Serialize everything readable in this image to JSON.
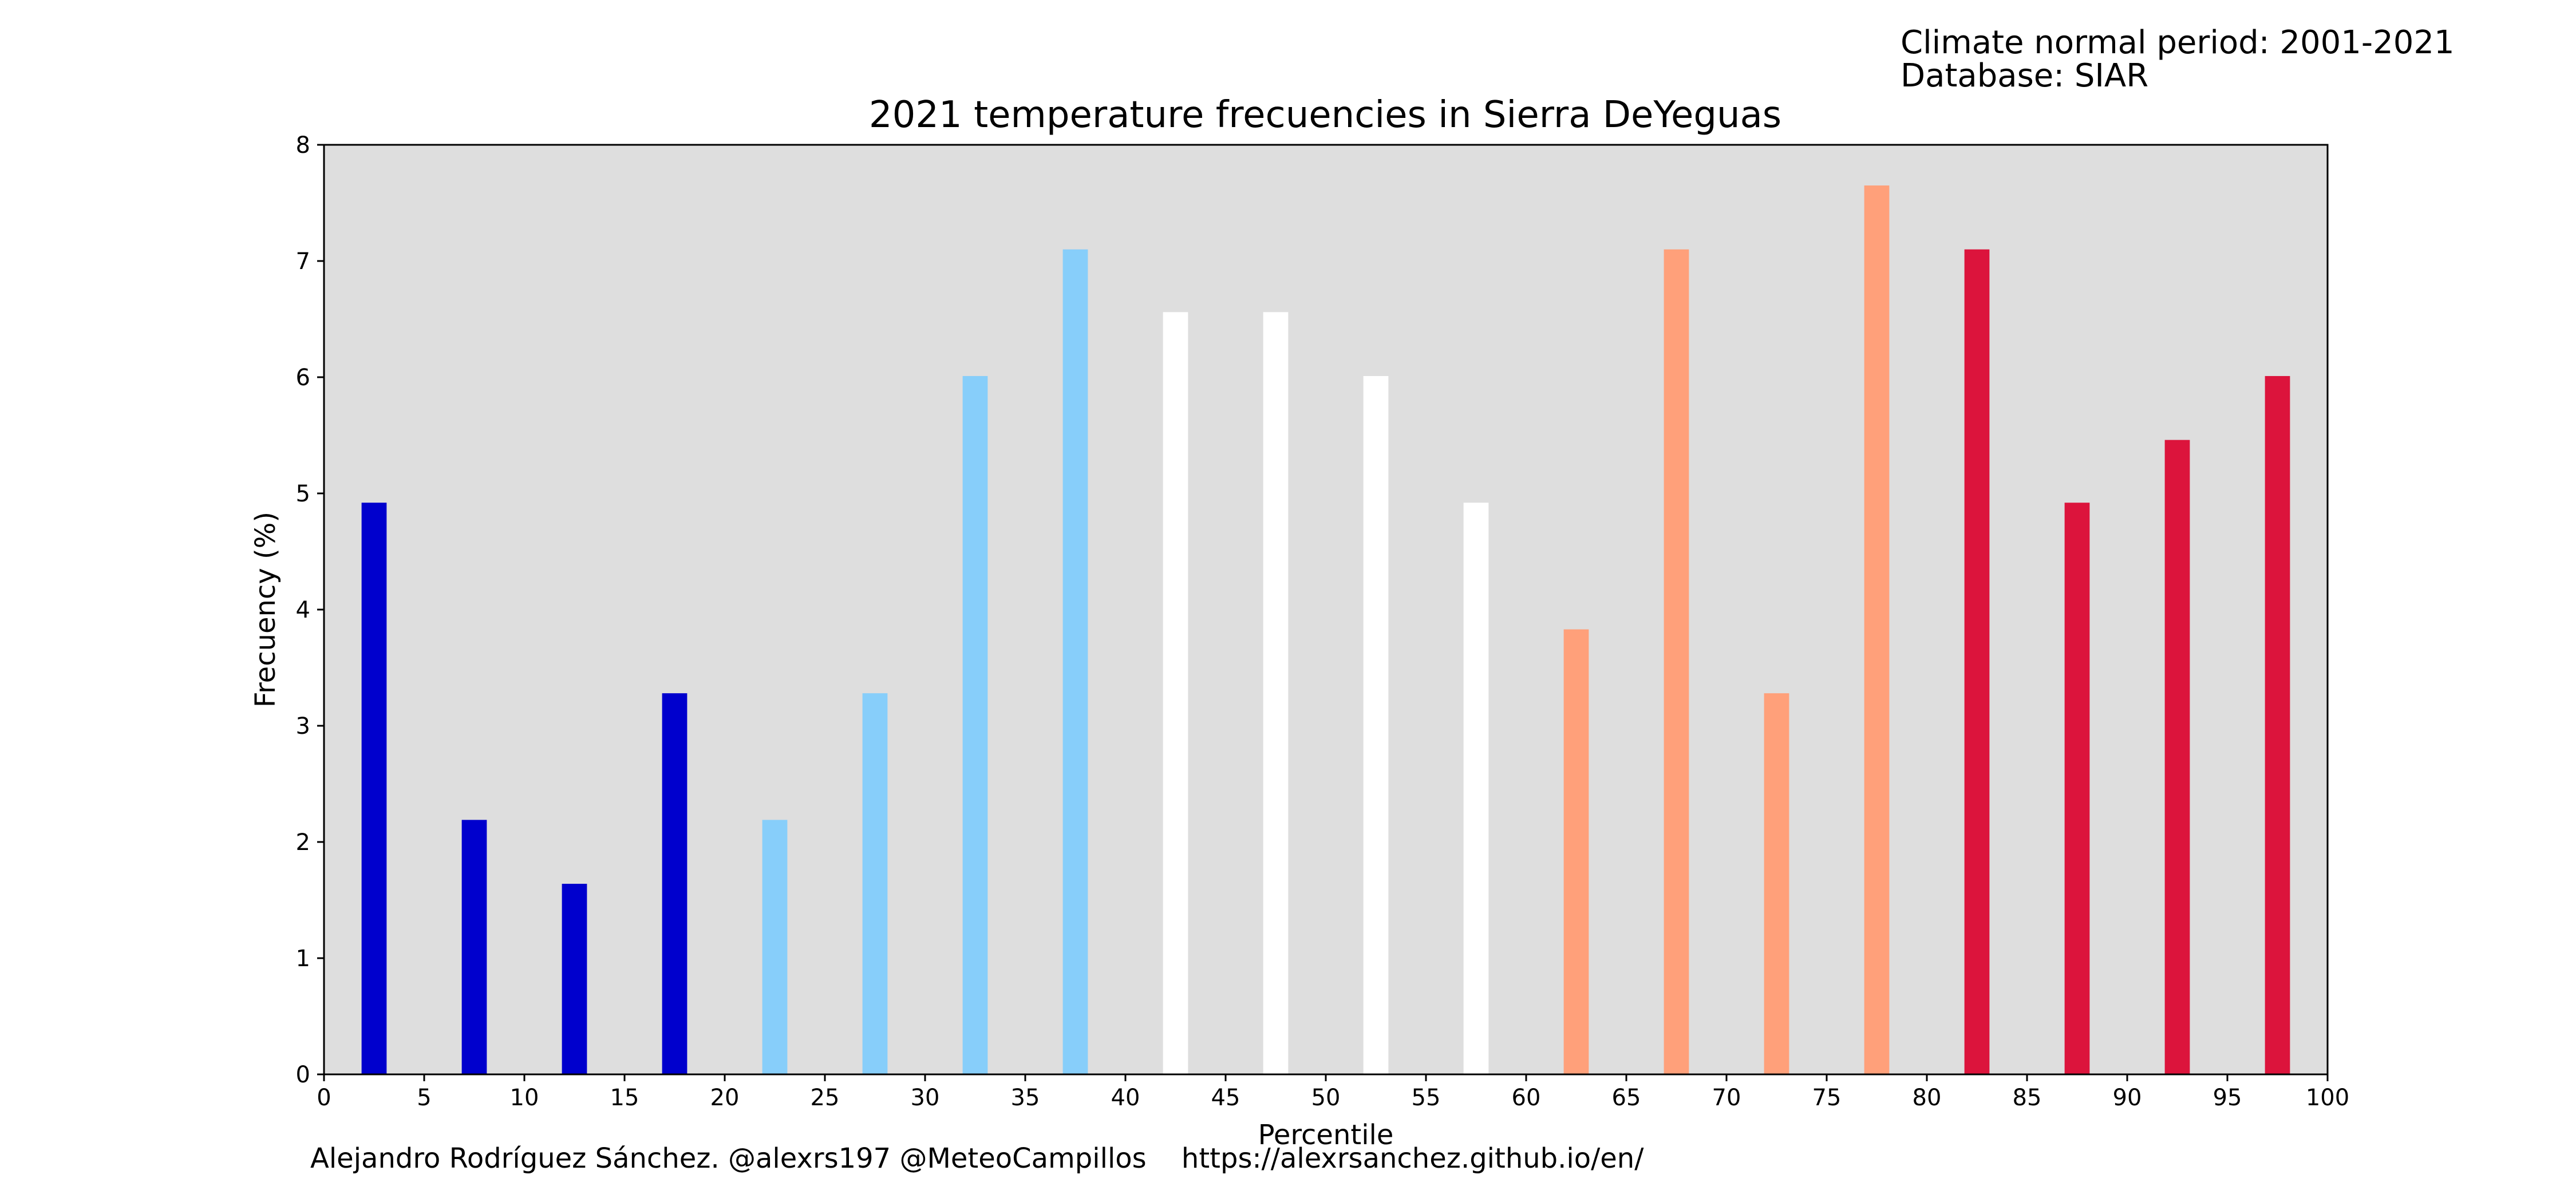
{
  "header": {
    "period": "Climate normal period: 2001-2021",
    "database": "Database: SIAR"
  },
  "footer": {
    "author": "Alejandro Rodríguez Sánchez. @alexrs197 @MeteoCampillos",
    "url": "https://alexrsanchez.github.io/en/"
  },
  "colors": {
    "background": "#dedede",
    "very_cold": "#0000cd",
    "cold": "#87cefa",
    "normal": "#ffffff",
    "warm": "#ffa07a",
    "very_warm": "#dc143c"
  },
  "chart_data": {
    "type": "bar",
    "title": "2021 temperature frecuencies in Sierra DeYeguas",
    "xlabel": "Percentile",
    "ylabel": "Frecuency (%)",
    "xlim": [
      0,
      100
    ],
    "ylim": [
      0,
      8
    ],
    "xticks": [
      0,
      5,
      10,
      15,
      20,
      25,
      30,
      35,
      40,
      45,
      50,
      55,
      60,
      65,
      70,
      75,
      80,
      85,
      90,
      95,
      100
    ],
    "yticks": [
      0,
      1,
      2,
      3,
      4,
      5,
      6,
      7,
      8
    ],
    "grid": false,
    "bar_width": 1.25,
    "x": [
      2.5,
      7.5,
      12.5,
      17.5,
      22.5,
      27.5,
      32.5,
      37.5,
      42.5,
      47.5,
      52.5,
      57.5,
      62.5,
      67.5,
      72.5,
      77.5,
      82.5,
      87.5,
      92.5,
      97.5
    ],
    "values": [
      4.92,
      2.19,
      1.64,
      3.28,
      2.19,
      3.28,
      6.01,
      7.1,
      6.56,
      6.56,
      6.01,
      4.92,
      3.83,
      7.1,
      3.28,
      7.65,
      7.1,
      4.92,
      5.46,
      6.01
    ],
    "bar_colors": [
      "#0000cd",
      "#0000cd",
      "#0000cd",
      "#0000cd",
      "#87cefa",
      "#87cefa",
      "#87cefa",
      "#87cefa",
      "#ffffff",
      "#ffffff",
      "#ffffff",
      "#ffffff",
      "#ffa07a",
      "#ffa07a",
      "#ffa07a",
      "#ffa07a",
      "#dc143c",
      "#dc143c",
      "#dc143c",
      "#dc143c"
    ]
  }
}
